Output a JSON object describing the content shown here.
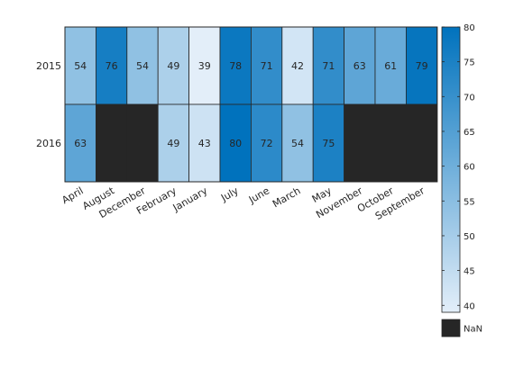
{
  "chart_data": {
    "type": "heatmap",
    "x_categories": [
      "April",
      "August",
      "December",
      "February",
      "January",
      "July",
      "June",
      "March",
      "May",
      "November",
      "October",
      "September"
    ],
    "y_categories": [
      "2015",
      "2016"
    ],
    "values": [
      [
        54,
        76,
        54,
        49,
        39,
        78,
        71,
        42,
        71,
        63,
        61,
        79
      ],
      [
        63,
        null,
        null,
        49,
        43,
        80,
        72,
        54,
        75,
        null,
        null,
        null
      ]
    ],
    "missing_label": "NaN",
    "colorbar": {
      "range": [
        39,
        80
      ],
      "ticks": [
        40,
        45,
        50,
        55,
        60,
        65,
        70,
        75,
        80
      ]
    },
    "colors": {
      "low": "#e3eef9",
      "high": "#0072bd",
      "missing": "#262626",
      "grid": "#262626",
      "text_dark": "#262626",
      "text_light": "#ffffff"
    }
  }
}
